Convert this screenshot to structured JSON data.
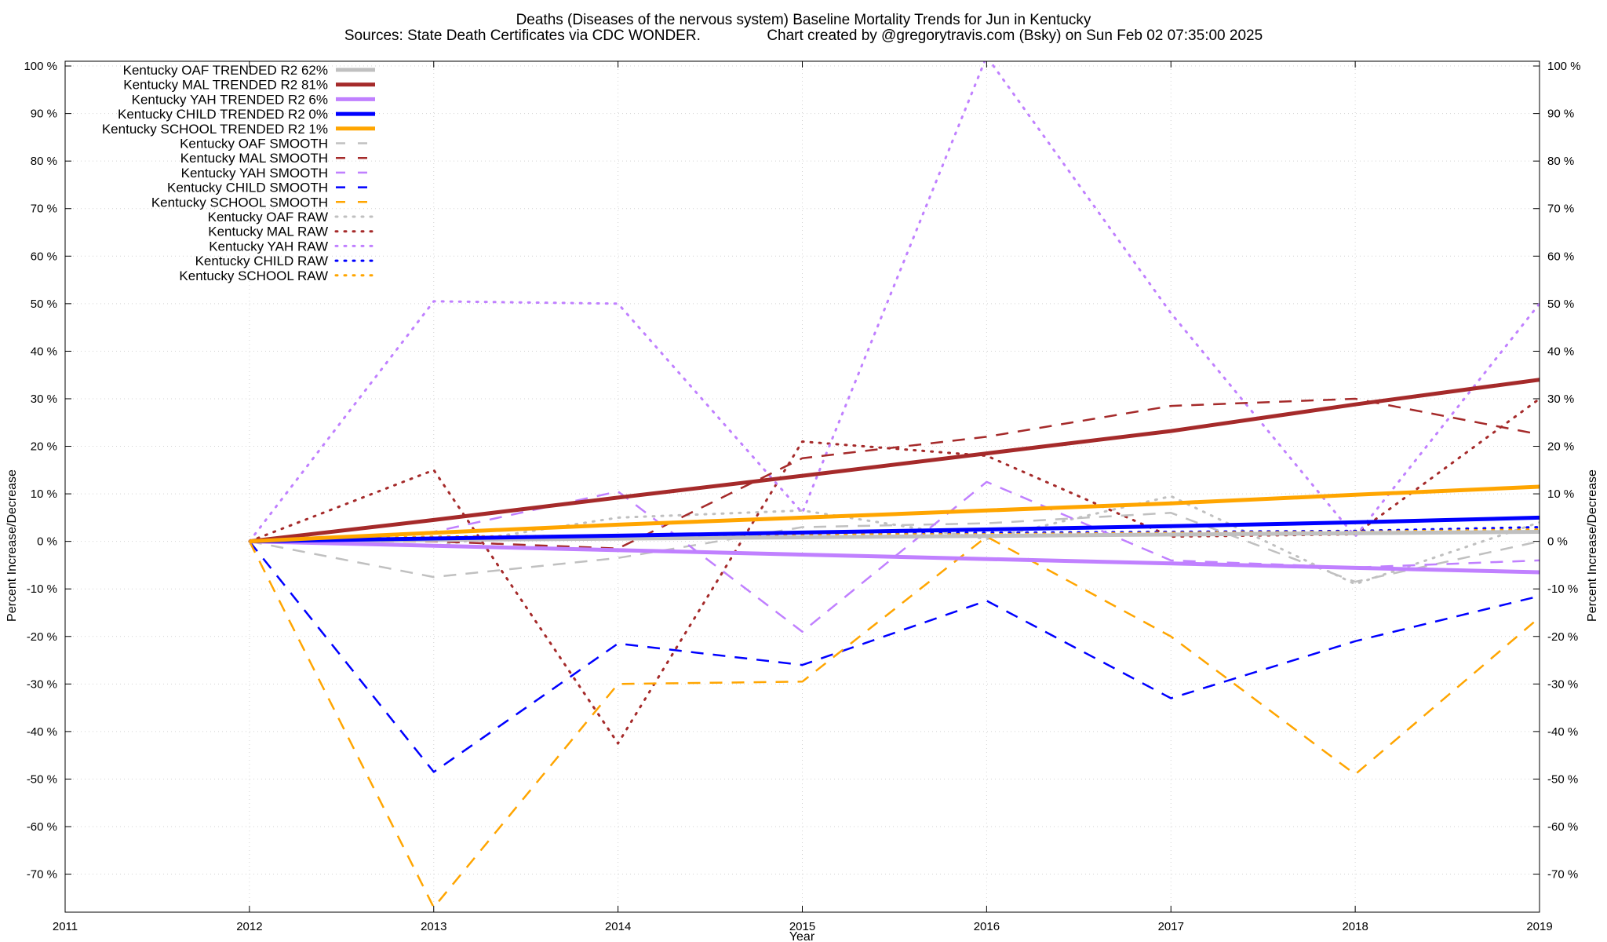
{
  "chart_data": {
    "type": "line",
    "title": "Deaths (Diseases of the nervous system)  Baseline Mortality Trends for Jun in Kentucky",
    "subtitle": "Sources: State Death Certificates via CDC WONDER.                Chart created by @gregorytravis.com (Bsky) on Sun Feb 02 07:35:00 2025",
    "xlabel": "Year",
    "ylabel": "Percent Increase/Decrease",
    "y2label": "Percent Increase/Decrease",
    "xlim": [
      2011,
      2019
    ],
    "ylim": [
      -78,
      101
    ],
    "x_ticks": [
      {
        "value": 2011,
        "label": "2011"
      },
      {
        "value": 2012,
        "label": "2012"
      },
      {
        "value": 2013,
        "label": "2013"
      },
      {
        "value": 2014,
        "label": "2014"
      },
      {
        "value": 2015,
        "label": "2015"
      },
      {
        "value": 2016,
        "label": "2016"
      },
      {
        "value": 2017,
        "label": "2017"
      },
      {
        "value": 2018,
        "label": "2018"
      },
      {
        "value": 2019,
        "label": "2019"
      }
    ],
    "y_ticks": [
      {
        "value": 100,
        "label": "100 %"
      },
      {
        "value": 90,
        "label": "90 %"
      },
      {
        "value": 80,
        "label": "80 %"
      },
      {
        "value": 70,
        "label": "70 %"
      },
      {
        "value": 60,
        "label": "60 %"
      },
      {
        "value": 50,
        "label": "50 %"
      },
      {
        "value": 40,
        "label": "40 %"
      },
      {
        "value": 30,
        "label": "30 %"
      },
      {
        "value": 20,
        "label": "20 %"
      },
      {
        "value": 10,
        "label": "10 %"
      },
      {
        "value": 0,
        "label": "0 %"
      },
      {
        "value": -10,
        "label": "-10 %"
      },
      {
        "value": -20,
        "label": "-20 %"
      },
      {
        "value": -30,
        "label": "-30 %"
      },
      {
        "value": -40,
        "label": "-40 %"
      },
      {
        "value": -50,
        "label": "-50 %"
      },
      {
        "value": -60,
        "label": "-60 %"
      },
      {
        "value": -70,
        "label": "-70 %"
      }
    ],
    "grid": true,
    "legend_position": "top-left",
    "series": [
      {
        "name": "Kentucky OAF TRENDED R2  62%",
        "style": "solid",
        "color": "#c0c0c0",
        "x": [
          2012,
          2019
        ],
        "y": [
          0,
          2
        ]
      },
      {
        "name": "Kentucky MAL TRENDED R2  81%",
        "style": "solid",
        "color": "#a52a2a",
        "x": [
          2012,
          2013,
          2014,
          2015,
          2016,
          2017,
          2018,
          2019
        ],
        "y": [
          0,
          4.5,
          9.2,
          13.8,
          18.5,
          23.2,
          28.8,
          34
        ]
      },
      {
        "name": "Kentucky YAH TRENDED R2   6%",
        "style": "solid",
        "color": "#c080ff",
        "x": [
          2012,
          2019
        ],
        "y": [
          0,
          -6.5
        ]
      },
      {
        "name": "Kentucky CHILD TRENDED R2   0%",
        "style": "solid",
        "color": "#0000ff",
        "x": [
          2012,
          2014,
          2016,
          2017,
          2018,
          2019
        ],
        "y": [
          0,
          1.2,
          2.5,
          3.2,
          4,
          5
        ]
      },
      {
        "name": "Kentucky SCHOOL TRENDED R2   1%",
        "style": "solid",
        "color": "#ffa500",
        "x": [
          2012,
          2013,
          2014,
          2015,
          2016,
          2017,
          2018,
          2019
        ],
        "y": [
          0,
          1.8,
          3.5,
          5,
          6.5,
          8,
          9.8,
          11.5
        ]
      },
      {
        "name": "Kentucky OAF SMOOTH",
        "style": "dashed",
        "color": "#c0c0c0",
        "x": [
          2012,
          2013,
          2014,
          2015,
          2016,
          2017,
          2018,
          2019
        ],
        "y": [
          0,
          -7.5,
          -3.5,
          3,
          3.8,
          6,
          -8.5,
          0
        ]
      },
      {
        "name": "Kentucky MAL SMOOTH",
        "style": "dashed",
        "color": "#a52a2a",
        "x": [
          2012,
          2013,
          2014,
          2015,
          2016,
          2017,
          2018,
          2019
        ],
        "y": [
          0,
          0,
          -1.5,
          17.5,
          22,
          28.5,
          30,
          22.5
        ]
      },
      {
        "name": "Kentucky YAH SMOOTH",
        "style": "dashed",
        "color": "#c080ff",
        "x": [
          2012,
          2013,
          2014,
          2015,
          2016,
          2017,
          2018,
          2019
        ],
        "y": [
          0,
          2,
          10.5,
          -19,
          12.5,
          -4,
          -5.5,
          -4
        ]
      },
      {
        "name": "Kentucky CHILD SMOOTH",
        "style": "dashed",
        "color": "#0000ff",
        "x": [
          2012,
          2013,
          2014,
          2015,
          2016,
          2017,
          2018,
          2019
        ],
        "y": [
          0,
          -48.5,
          -21.5,
          -26,
          -12.5,
          -33,
          -21,
          -11.5
        ]
      },
      {
        "name": "Kentucky SCHOOL SMOOTH",
        "style": "dashed",
        "color": "#ffa500",
        "x": [
          2012,
          2013,
          2014,
          2015,
          2016,
          2017,
          2018,
          2019
        ],
        "y": [
          0,
          -77,
          -30,
          -29.5,
          1,
          -20,
          -49,
          -16
        ]
      },
      {
        "name": "Kentucky OAF RAW",
        "style": "dotted",
        "color": "#c0c0c0",
        "x": [
          2012,
          2013,
          2014,
          2015,
          2016,
          2017,
          2018,
          2019
        ],
        "y": [
          0,
          -1,
          5,
          6.5,
          0.5,
          9.5,
          -9,
          4
        ]
      },
      {
        "name": "Kentucky MAL RAW",
        "style": "dotted",
        "color": "#a52a2a",
        "x": [
          2012,
          2013,
          2014,
          2015,
          2016,
          2017,
          2018,
          2019
        ],
        "y": [
          0,
          15,
          -42.5,
          21,
          18,
          1,
          1.5,
          30
        ]
      },
      {
        "name": "Kentucky YAH RAW",
        "style": "dotted",
        "color": "#c080ff",
        "x": [
          2012,
          2013,
          2014,
          2015,
          2016,
          2017,
          2018,
          2019
        ],
        "y": [
          0,
          50.5,
          50,
          6,
          102,
          48,
          1,
          50
        ]
      },
      {
        "name": "Kentucky CHILD RAW",
        "style": "dotted",
        "color": "#0000ff",
        "x": [
          2012,
          2013,
          2014,
          2015,
          2016,
          2017,
          2018,
          2019
        ],
        "y": [
          0,
          0.5,
          1,
          1.5,
          1.8,
          2,
          2.2,
          3
        ]
      },
      {
        "name": "Kentucky SCHOOL RAW",
        "style": "dotted",
        "color": "#ffa500",
        "x": [
          2012,
          2013,
          2014,
          2015,
          2016,
          2017,
          2018,
          2019
        ],
        "y": [
          0,
          1,
          1.2,
          1.5,
          1.5,
          1.8,
          2,
          2.5
        ]
      }
    ]
  }
}
